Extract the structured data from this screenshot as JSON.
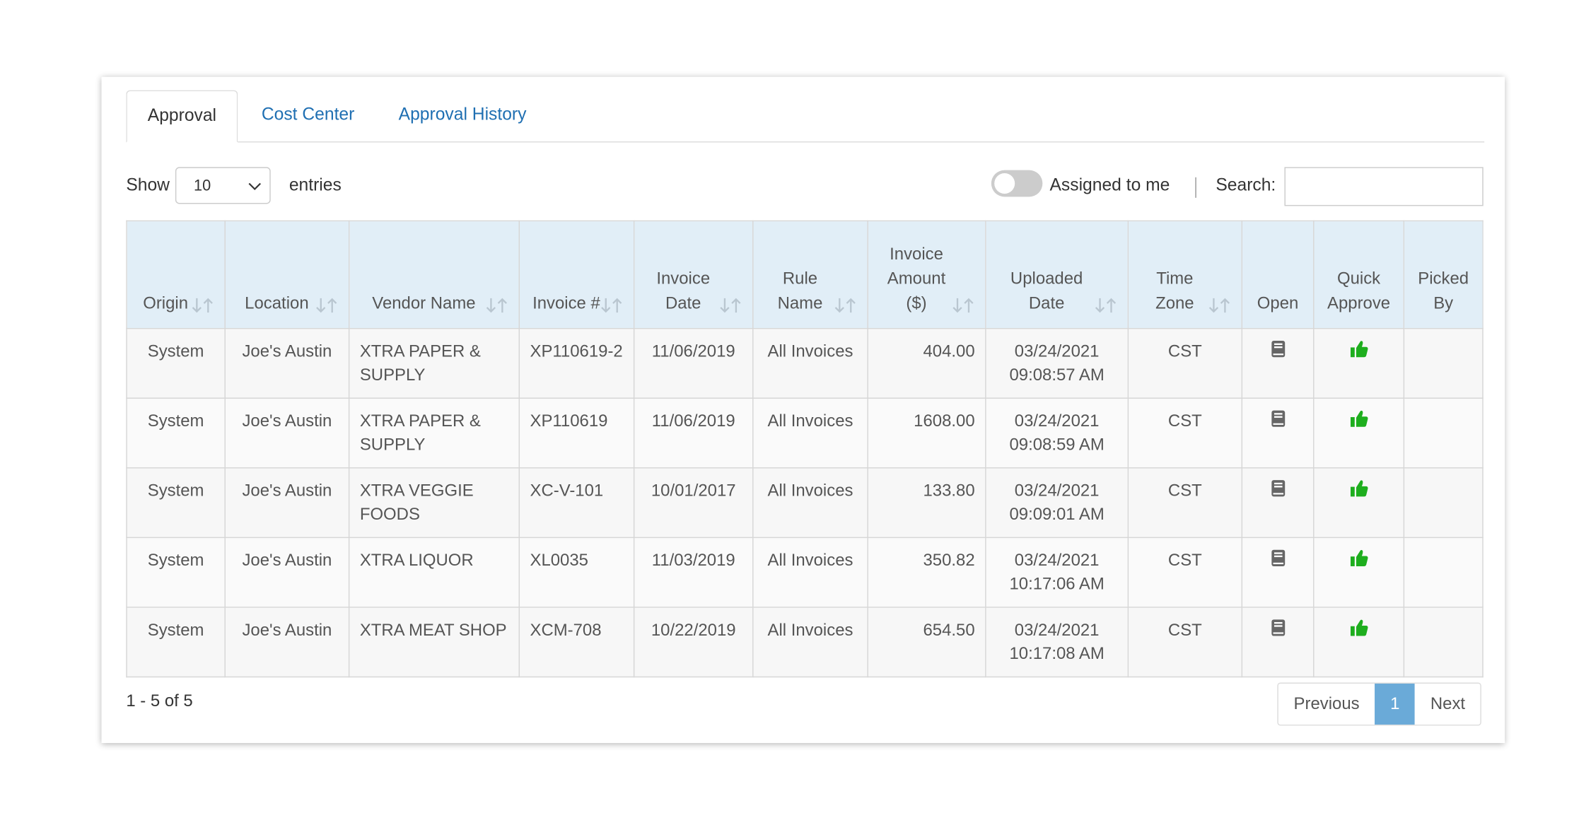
{
  "tabs": [
    "Approval",
    "Cost Center",
    "Approval History"
  ],
  "controls": {
    "show_label": "Show",
    "page_length": "10",
    "entries_label": "entries",
    "toggle_label": "Assigned to me",
    "search_label": "Search:"
  },
  "table": {
    "headers": [
      "Origin",
      "Location",
      "Vendor Name",
      "Invoice #",
      "Invoice Date",
      "Rule Name",
      "Invoice Amount ($)",
      "Uploaded Date",
      "Time Zone",
      "Open",
      "Quick Approve",
      "Picked By"
    ],
    "rows": [
      [
        "System",
        "Joe's Austin",
        "XTRA PAPER & SUPPLY",
        "XP110619-2",
        "11/06/2019",
        "All Invoices",
        "404.00",
        "03/24/2021 09:08:57 AM",
        "CST"
      ],
      [
        "System",
        "Joe's Austin",
        "XTRA PAPER & SUPPLY",
        "XP110619",
        "11/06/2019",
        "All Invoices",
        "1608.00",
        "03/24/2021 09:08:59 AM",
        "CST"
      ],
      [
        "System",
        "Joe's Austin",
        "XTRA VEGGIE FOODS",
        "XC-V-101",
        "10/01/2017",
        "All Invoices",
        "133.80",
        "03/24/2021 09:09:01 AM",
        "CST"
      ],
      [
        "System",
        "Joe's Austin",
        "XTRA LIQUOR",
        "XL0035",
        "11/03/2019",
        "All Invoices",
        "350.82",
        "03/24/2021 10:17:06 AM",
        "CST"
      ],
      [
        "System",
        "Joe's Austin",
        "XTRA MEAT SHOP",
        "XCM-708",
        "10/22/2019",
        "All Invoices",
        "654.50",
        "03/24/2021 10:17:08 AM",
        "CST"
      ]
    ]
  },
  "footer": {
    "info": "1 - 5 of 5",
    "pagination": [
      "Previous",
      "1",
      "Next"
    ]
  }
}
